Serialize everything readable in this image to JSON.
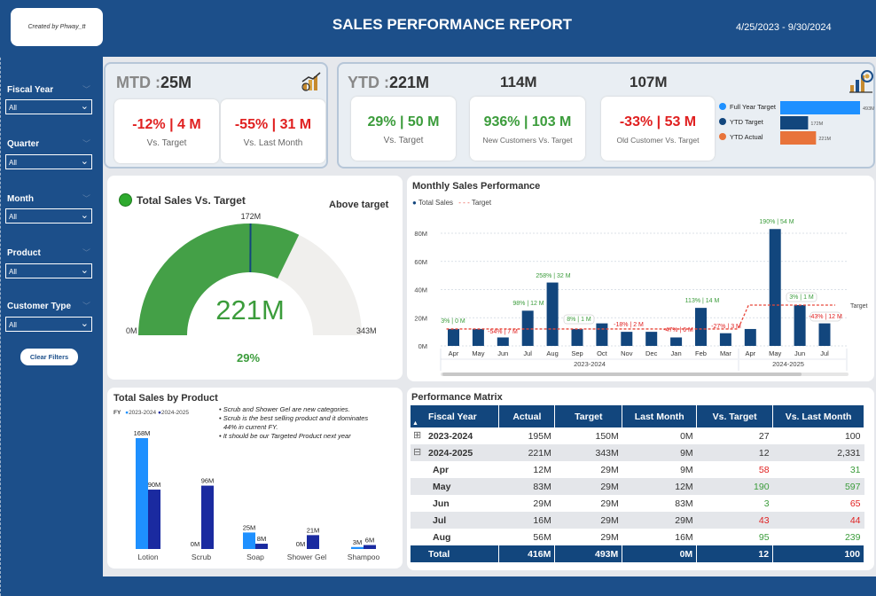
{
  "header": {
    "credit": "Created by Phway_tt",
    "title": "SALES PERFORMANCE REPORT",
    "date_range": "4/25/2023 - 9/30/2024"
  },
  "slicers": [
    {
      "label": "Fiscal Year",
      "value": "All"
    },
    {
      "label": "Quarter",
      "value": "All"
    },
    {
      "label": "Month",
      "value": "All"
    },
    {
      "label": "Product",
      "value": "All"
    },
    {
      "label": "Customer Type",
      "value": "All"
    }
  ],
  "clear_filters": "Clear Filters",
  "mtd": {
    "label": "MTD :",
    "value": "25M",
    "cards": [
      {
        "value": "-12% | 4 M",
        "sub": "Vs. Target"
      },
      {
        "value": "-55% | 31 M",
        "sub": "Vs. Last Month"
      }
    ]
  },
  "ytd": {
    "label": "YTD :",
    "value": "221M",
    "new_total": "114M",
    "old_total": "107M",
    "cards": [
      {
        "value": "29% | 50 M",
        "sub": "Vs. Target"
      },
      {
        "value": "936% | 103 M",
        "sub": "New Customers Vs. Target"
      },
      {
        "value": "-33% | 53 M",
        "sub": "Old Customer Vs. Target"
      }
    ],
    "mini_legend": [
      {
        "label": "Full Year Target",
        "value": "493M",
        "amount": 493,
        "color": "#1e90ff"
      },
      {
        "label": "YTD Target",
        "value": "172M",
        "amount": 172,
        "color": "#12467d"
      },
      {
        "label": "YTD Actual",
        "value": "221M",
        "amount": 221,
        "color": "#e8733a"
      }
    ]
  },
  "gauge": {
    "title": "Total Sales Vs. Target",
    "status": "Above target",
    "value": "221M",
    "actual": 221,
    "target": 172,
    "target_label": "172M",
    "min_label": "0M",
    "max_label": "343M",
    "max": 343,
    "pct": "29%",
    "fill_color": "#44a047",
    "track_color": "#f0efed"
  },
  "monthly": {
    "title": "Monthly Sales Performance",
    "legend_total": "Total Sales",
    "legend_target": "Target",
    "target_end_label": "Target",
    "fy_labels": [
      "2023-2024",
      "2024-2025"
    ]
  },
  "chart_data": [
    {
      "type": "bar",
      "title": "Monthly Sales Performance",
      "categories": [
        "Apr",
        "May",
        "Jun",
        "Jul",
        "Aug",
        "Sep",
        "Oct",
        "Nov",
        "Dec",
        "Jan",
        "Feb",
        "Mar",
        "Apr",
        "May",
        "Jun",
        "Jul"
      ],
      "series": [
        {
          "name": "Total Sales",
          "values": [
            12,
            12,
            6,
            25,
            45,
            12,
            16,
            10,
            10,
            6,
            27,
            9,
            12,
            83,
            29,
            16
          ]
        },
        {
          "name": "Target",
          "type": "line",
          "values": [
            12,
            12,
            12,
            12,
            12,
            12,
            12,
            12,
            12,
            12,
            12,
            12,
            29,
            29,
            29,
            29
          ]
        }
      ],
      "annotations": [
        "3% | 0 M",
        "-54% | 7 M",
        "98% | 12 M",
        "258% | 32 M",
        "8% | 1 M",
        "-18% | 2 M",
        "-47% | 6 M",
        "113% | 14 M",
        "-27% | 3 M",
        "190% | 54 M",
        "3% | 1 M",
        "-43% | 12 M"
      ],
      "yticks": [
        "0M",
        "20M",
        "40M",
        "60M",
        "80M"
      ],
      "ylim": [
        0,
        85
      ]
    },
    {
      "type": "bar",
      "title": "Total Sales by Product",
      "categories": [
        "Lotion",
        "Scrub",
        "Soap",
        "Shower Gel",
        "Shampoo"
      ],
      "series": [
        {
          "name": "2023-2024",
          "values": [
            168,
            0,
            25,
            0,
            3
          ]
        },
        {
          "name": "2024-2025",
          "values": [
            90,
            96,
            8,
            21,
            6
          ]
        }
      ],
      "labels_2023": [
        "168M",
        "0M",
        "25M",
        "0M",
        "3M"
      ],
      "labels_2024": [
        "90M",
        "96M",
        "8M",
        "21M",
        "6M"
      ]
    }
  ],
  "product": {
    "title": "Total Sales by Product",
    "fy_label": "FY",
    "legend": [
      "2023-2024",
      "2024-2025"
    ],
    "notes": [
      "Scrub and Shower Gel are new categories.",
      "Scrub is the best selling product and it dominates",
      "44% in current FY.",
      "It should  be our Targeted Product next year"
    ]
  },
  "matrix": {
    "title": "Performance Matrix",
    "columns": [
      "Fiscal Year",
      "Actual",
      "Target",
      "Last Month",
      "Vs. Target",
      "Vs. Last Month"
    ],
    "rows": [
      {
        "cells": [
          "2023-2024",
          "195M",
          "150M",
          "0M",
          "27",
          "100"
        ],
        "kind": "fy",
        "icon": "⊞"
      },
      {
        "cells": [
          "2024-2025",
          "221M",
          "343M",
          "9M",
          "12",
          "2,331"
        ],
        "kind": "fy",
        "icon": "⊟"
      },
      {
        "cells": [
          "Apr",
          "12M",
          "29M",
          "9M",
          "58",
          "31"
        ],
        "kind": "m",
        "c4": "red",
        "c5": "green"
      },
      {
        "cells": [
          "May",
          "83M",
          "29M",
          "12M",
          "190",
          "597"
        ],
        "kind": "m",
        "c4": "green",
        "c5": "green"
      },
      {
        "cells": [
          "Jun",
          "29M",
          "29M",
          "83M",
          "3",
          "65"
        ],
        "kind": "m",
        "c4": "green",
        "c5": "red"
      },
      {
        "cells": [
          "Jul",
          "16M",
          "29M",
          "29M",
          "43",
          "44"
        ],
        "kind": "m",
        "c4": "red",
        "c5": "red"
      },
      {
        "cells": [
          "Aug",
          "56M",
          "29M",
          "16M",
          "95",
          "239"
        ],
        "kind": "m",
        "c4": "green",
        "c5": "green"
      }
    ],
    "total": [
      "Total",
      "416M",
      "493M",
      "0M",
      "12",
      "100"
    ]
  }
}
